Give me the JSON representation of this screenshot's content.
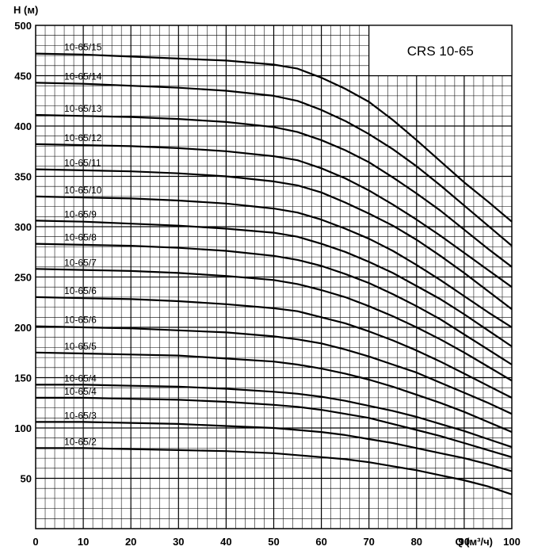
{
  "chart_data": {
    "type": "line",
    "title": "CRS 10-65",
    "ylabel": "H (м)",
    "xlabel": "Q (м³/ч)",
    "xlim": [
      0,
      100
    ],
    "ylim": [
      0,
      500
    ],
    "x_ticks": [
      0,
      10,
      20,
      30,
      40,
      50,
      60,
      70,
      80,
      90,
      100
    ],
    "y_ticks": [
      50,
      100,
      150,
      200,
      250,
      300,
      350,
      400,
      450,
      500
    ],
    "grid": true,
    "series": [
      {
        "name": "10-65/15",
        "points": [
          [
            0,
            472
          ],
          [
            10,
            471
          ],
          [
            20,
            469
          ],
          [
            30,
            467
          ],
          [
            40,
            465
          ],
          [
            50,
            461
          ],
          [
            55,
            457
          ],
          [
            60,
            448
          ],
          [
            65,
            437
          ],
          [
            70,
            424
          ],
          [
            75,
            406
          ],
          [
            80,
            386
          ],
          [
            85,
            365
          ],
          [
            90,
            344
          ],
          [
            95,
            325
          ],
          [
            100,
            305
          ]
        ]
      },
      {
        "name": "10-65/14",
        "points": [
          [
            0,
            443
          ],
          [
            10,
            442
          ],
          [
            20,
            440
          ],
          [
            30,
            438
          ],
          [
            40,
            435
          ],
          [
            50,
            430
          ],
          [
            55,
            425
          ],
          [
            60,
            416
          ],
          [
            65,
            405
          ],
          [
            70,
            392
          ],
          [
            75,
            377
          ],
          [
            80,
            360
          ],
          [
            85,
            341
          ],
          [
            90,
            321
          ],
          [
            95,
            301
          ],
          [
            100,
            281
          ]
        ]
      },
      {
        "name": "10-65/13",
        "points": [
          [
            0,
            411
          ],
          [
            10,
            410
          ],
          [
            20,
            409
          ],
          [
            30,
            407
          ],
          [
            40,
            404
          ],
          [
            50,
            399
          ],
          [
            55,
            394
          ],
          [
            60,
            386
          ],
          [
            65,
            376
          ],
          [
            70,
            364
          ],
          [
            75,
            349
          ],
          [
            80,
            333
          ],
          [
            85,
            316
          ],
          [
            90,
            297
          ],
          [
            95,
            278
          ],
          [
            100,
            260
          ]
        ]
      },
      {
        "name": "10-65/12",
        "points": [
          [
            0,
            382
          ],
          [
            10,
            381
          ],
          [
            20,
            380
          ],
          [
            30,
            378
          ],
          [
            40,
            375
          ],
          [
            50,
            370
          ],
          [
            55,
            366
          ],
          [
            60,
            358
          ],
          [
            65,
            348
          ],
          [
            70,
            336
          ],
          [
            75,
            322
          ],
          [
            80,
            307
          ],
          [
            85,
            291
          ],
          [
            90,
            274
          ],
          [
            95,
            257
          ],
          [
            100,
            240
          ]
        ]
      },
      {
        "name": "10-65/11",
        "points": [
          [
            0,
            357
          ],
          [
            10,
            356
          ],
          [
            20,
            355
          ],
          [
            30,
            353
          ],
          [
            40,
            350
          ],
          [
            50,
            345
          ],
          [
            55,
            341
          ],
          [
            60,
            334
          ],
          [
            65,
            324
          ],
          [
            70,
            313
          ],
          [
            75,
            301
          ],
          [
            80,
            287
          ],
          [
            85,
            271
          ],
          [
            90,
            254
          ],
          [
            95,
            236
          ],
          [
            100,
            218
          ]
        ]
      },
      {
        "name": "10-65/10",
        "points": [
          [
            0,
            330
          ],
          [
            10,
            329
          ],
          [
            20,
            328
          ],
          [
            30,
            326
          ],
          [
            40,
            323
          ],
          [
            50,
            318
          ],
          [
            55,
            314
          ],
          [
            60,
            307
          ],
          [
            65,
            298
          ],
          [
            70,
            288
          ],
          [
            75,
            276
          ],
          [
            80,
            262
          ],
          [
            85,
            247
          ],
          [
            90,
            231
          ],
          [
            95,
            215
          ],
          [
            100,
            200
          ]
        ]
      },
      {
        "name": "10-65/9",
        "points": [
          [
            0,
            306
          ],
          [
            10,
            305
          ],
          [
            20,
            303
          ],
          [
            30,
            301
          ],
          [
            40,
            298
          ],
          [
            50,
            294
          ],
          [
            55,
            290
          ],
          [
            60,
            283
          ],
          [
            65,
            275
          ],
          [
            70,
            265
          ],
          [
            75,
            254
          ],
          [
            80,
            241
          ],
          [
            85,
            228
          ],
          [
            90,
            213
          ],
          [
            95,
            197
          ],
          [
            100,
            181
          ]
        ]
      },
      {
        "name": "10-65/8",
        "points": [
          [
            0,
            283
          ],
          [
            10,
            282
          ],
          [
            20,
            281
          ],
          [
            30,
            279
          ],
          [
            40,
            276
          ],
          [
            50,
            271
          ],
          [
            55,
            267
          ],
          [
            60,
            261
          ],
          [
            65,
            253
          ],
          [
            70,
            244
          ],
          [
            75,
            233
          ],
          [
            80,
            221
          ],
          [
            85,
            208
          ],
          [
            90,
            193
          ],
          [
            95,
            178
          ],
          [
            100,
            163
          ]
        ]
      },
      {
        "name": "10-65/7",
        "points": [
          [
            0,
            258
          ],
          [
            10,
            257
          ],
          [
            20,
            256
          ],
          [
            30,
            254
          ],
          [
            40,
            251
          ],
          [
            50,
            247
          ],
          [
            55,
            243
          ],
          [
            60,
            237
          ],
          [
            65,
            230
          ],
          [
            70,
            221
          ],
          [
            75,
            211
          ],
          [
            80,
            200
          ],
          [
            85,
            188
          ],
          [
            90,
            175
          ],
          [
            95,
            161
          ],
          [
            100,
            147
          ]
        ]
      },
      {
        "name": "10-65/6",
        "points": [
          [
            0,
            230
          ],
          [
            10,
            229
          ],
          [
            20,
            228
          ],
          [
            30,
            226
          ],
          [
            40,
            223
          ],
          [
            50,
            219
          ],
          [
            55,
            216
          ],
          [
            60,
            210
          ],
          [
            65,
            204
          ],
          [
            70,
            196
          ],
          [
            75,
            187
          ],
          [
            80,
            177
          ],
          [
            85,
            166
          ],
          [
            90,
            154
          ],
          [
            95,
            142
          ],
          [
            100,
            130
          ]
        ]
      },
      {
        "name": "10-65/6",
        "points": [
          [
            0,
            201
          ],
          [
            10,
            200
          ],
          [
            20,
            199
          ],
          [
            30,
            197
          ],
          [
            40,
            195
          ],
          [
            50,
            191
          ],
          [
            55,
            188
          ],
          [
            60,
            184
          ],
          [
            65,
            178
          ],
          [
            70,
            171
          ],
          [
            75,
            163
          ],
          [
            80,
            155
          ],
          [
            85,
            145
          ],
          [
            90,
            135
          ],
          [
            95,
            125
          ],
          [
            100,
            114
          ]
        ]
      },
      {
        "name": "10-65/5",
        "points": [
          [
            0,
            175
          ],
          [
            10,
            174
          ],
          [
            20,
            173
          ],
          [
            30,
            172
          ],
          [
            40,
            169
          ],
          [
            50,
            166
          ],
          [
            55,
            163
          ],
          [
            60,
            159
          ],
          [
            65,
            154
          ],
          [
            70,
            148
          ],
          [
            75,
            141
          ],
          [
            80,
            133
          ],
          [
            85,
            125
          ],
          [
            90,
            116
          ],
          [
            95,
            106
          ],
          [
            100,
            96
          ]
        ]
      },
      {
        "name": "10-65/4",
        "points": [
          [
            0,
            143
          ],
          [
            10,
            143
          ],
          [
            20,
            142
          ],
          [
            30,
            141
          ],
          [
            40,
            139
          ],
          [
            50,
            136
          ],
          [
            55,
            134
          ],
          [
            60,
            131
          ],
          [
            65,
            127
          ],
          [
            70,
            122
          ],
          [
            75,
            117
          ],
          [
            80,
            111
          ],
          [
            85,
            104
          ],
          [
            90,
            97
          ],
          [
            95,
            89
          ],
          [
            100,
            81
          ]
        ]
      },
      {
        "name": "10-65/4",
        "points": [
          [
            0,
            130
          ],
          [
            10,
            130
          ],
          [
            20,
            129
          ],
          [
            30,
            128
          ],
          [
            40,
            126
          ],
          [
            50,
            123
          ],
          [
            55,
            121
          ],
          [
            60,
            118
          ],
          [
            65,
            114
          ],
          [
            70,
            110
          ],
          [
            75,
            104
          ],
          [
            80,
            98
          ],
          [
            85,
            92
          ],
          [
            90,
            85
          ],
          [
            95,
            78
          ],
          [
            100,
            71
          ]
        ]
      },
      {
        "name": "10-65/3",
        "points": [
          [
            0,
            106
          ],
          [
            10,
            106
          ],
          [
            20,
            105
          ],
          [
            30,
            104
          ],
          [
            40,
            102
          ],
          [
            50,
            100
          ],
          [
            55,
            98
          ],
          [
            60,
            96
          ],
          [
            65,
            93
          ],
          [
            70,
            89
          ],
          [
            75,
            85
          ],
          [
            80,
            80
          ],
          [
            85,
            75
          ],
          [
            90,
            70
          ],
          [
            95,
            64
          ],
          [
            100,
            57
          ]
        ]
      },
      {
        "name": "10-65/2",
        "points": [
          [
            0,
            80
          ],
          [
            10,
            80
          ],
          [
            20,
            79
          ],
          [
            30,
            78
          ],
          [
            40,
            77
          ],
          [
            50,
            75
          ],
          [
            55,
            73
          ],
          [
            60,
            71
          ],
          [
            65,
            69
          ],
          [
            70,
            66
          ],
          [
            75,
            62
          ],
          [
            80,
            58
          ],
          [
            85,
            53
          ],
          [
            90,
            48
          ],
          [
            95,
            42
          ],
          [
            100,
            34
          ]
        ]
      }
    ]
  }
}
